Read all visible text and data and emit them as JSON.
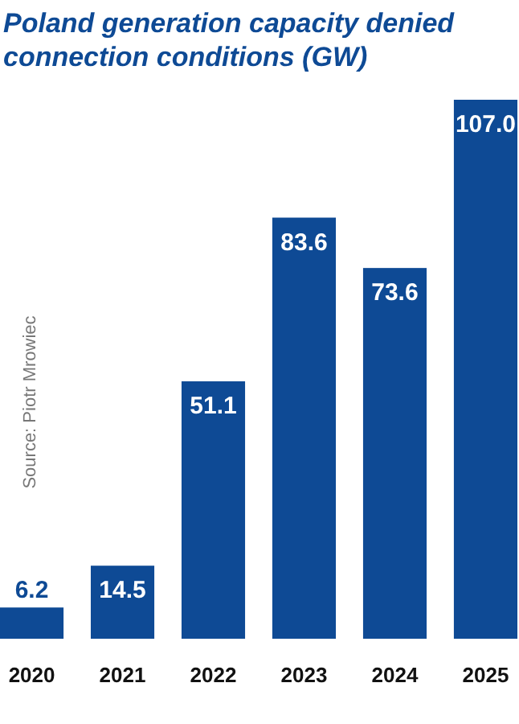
{
  "chart_data": {
    "type": "bar",
    "title": "Poland generation capacity denied connection conditions (GW)",
    "categories": [
      "2020",
      "2021",
      "2022",
      "2023",
      "2024",
      "2025"
    ],
    "values": [
      6.2,
      14.5,
      51.1,
      83.6,
      73.6,
      107.0
    ],
    "value_labels": [
      "6.2",
      "14.5",
      "51.1",
      "83.6",
      "73.6",
      "107.0"
    ],
    "color": "#0e4a95",
    "annotations": [
      "Source: Piotr Mrowiec"
    ]
  }
}
